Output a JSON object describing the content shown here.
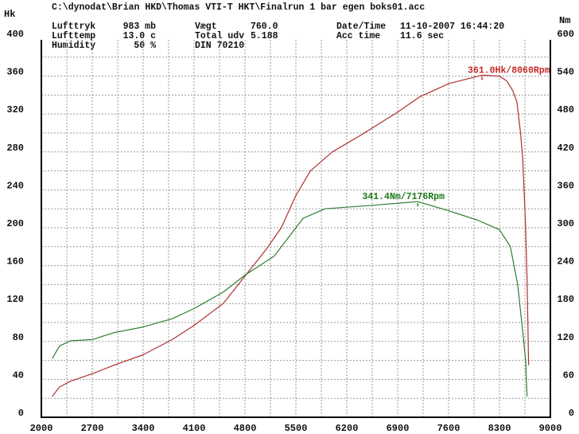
{
  "header": {
    "file_path": "C:\\dynodat\\Brian HKD\\Thomas VTI-T HKT\\Finalrun 1 bar egen boks01.acc",
    "rows": [
      [
        "Lufttryk",
        "983 mb",
        "Vægt",
        "760.0",
        "Date/Time",
        "11-10-2007 16:44:20"
      ],
      [
        "Lufttemp",
        "13.0 c",
        "Total udv",
        "5.188",
        "Acc time",
        "11.6 sec"
      ],
      [
        "Humidity",
        "50 %",
        "DIN 70210",
        "",
        "",
        ""
      ]
    ]
  },
  "chart_data": {
    "type": "line",
    "ylabel_left": "Hk",
    "ylabel_right": "Nm",
    "xlim": [
      2000,
      9000
    ],
    "ylim_left": [
      0,
      400
    ],
    "ylim_right": [
      0,
      600
    ],
    "grid": true,
    "x_ticks": [
      "2000",
      "2700",
      "3400",
      "4100",
      "4800",
      "5500",
      "6200",
      "6900",
      "7600",
      "8300",
      "9000"
    ],
    "y_ticks_left": [
      "0",
      "40",
      "80",
      "120",
      "160",
      "200",
      "240",
      "280",
      "320",
      "360",
      "400"
    ],
    "y_ticks_right": [
      "0",
      "60",
      "120",
      "180",
      "240",
      "300",
      "360",
      "420",
      "480",
      "540",
      "600"
    ],
    "series": [
      {
        "axis": "left",
        "color": "#b03030",
        "x": [
          2150,
          2250,
          2400,
          2700,
          3000,
          3400,
          3800,
          4100,
          4500,
          4800,
          5100,
          5300,
          5500,
          5700,
          6000,
          6400,
          6900,
          7200,
          7600,
          8060,
          8300,
          8400,
          8480,
          8540,
          8590,
          8620,
          8660,
          8680,
          8690,
          8700
        ],
        "y": [
          22,
          32,
          38,
          46,
          55,
          66,
          82,
          97,
          120,
          149,
          178,
          200,
          234,
          260,
          280,
          298,
          322,
          338,
          352,
          361,
          360,
          355,
          345,
          333,
          300,
          272,
          200,
          146,
          100,
          55
        ]
      },
      {
        "axis": "right",
        "color": "#2e7d32",
        "x": [
          2150,
          2250,
          2400,
          2700,
          3000,
          3400,
          3800,
          4100,
          4500,
          4800,
          5200,
          5400,
          5600,
          5900,
          6500,
          7176,
          7600,
          8000,
          8300,
          8450,
          8550,
          8620,
          8660,
          8680
        ],
        "y": [
          93,
          113,
          121,
          123,
          134,
          143,
          156,
          172,
          198,
          225,
          255,
          285,
          315,
          330,
          335,
          341.4,
          327,
          312,
          297,
          270,
          210,
          135,
          90,
          33
        ]
      }
    ],
    "annotations": [
      {
        "text": "361.0Hk/8060Rpm",
        "x": 8060,
        "y": 361,
        "axis": "left",
        "color": "#c62828"
      },
      {
        "text": "341.4Nm/7176Rpm",
        "x": 7176,
        "y": 341.4,
        "axis": "right",
        "color": "#1b7a1b"
      }
    ]
  }
}
